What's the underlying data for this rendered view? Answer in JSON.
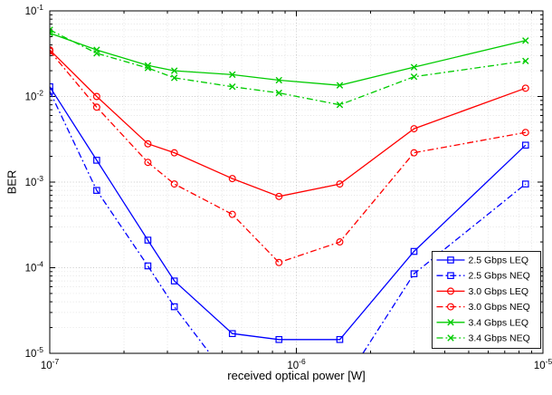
{
  "figure": {
    "title": "",
    "background": "#ffffff",
    "box_color": "#000000",
    "major_grid_color": "#b8b8b8",
    "minor_grid_color": "#dcdcdc"
  },
  "chart_data": {
    "type": "line",
    "x_scale": "log",
    "y_scale": "log",
    "xlim": [
      1e-07,
      1e-05
    ],
    "ylim": [
      1e-05,
      0.1
    ],
    "x_log_range": [
      -7,
      -5
    ],
    "y_log_range": [
      -5,
      -1
    ],
    "xlabel": "received optical power [W]",
    "ylabel": "BER",
    "x_tick_exponents": [
      -7,
      -6,
      -5
    ],
    "y_tick_exponents": [
      -5,
      -4,
      -3,
      -2,
      -1
    ],
    "grid": true,
    "minor_grid": true,
    "legend_position": "lower-right",
    "legend_labels": [
      "2.5 Gbps LEQ",
      "2.5 Gbps NEQ",
      "3.0 Gbps LEQ",
      "3.0 Gbps NEQ",
      "3.4 Gbps LEQ",
      "3.4 Gbps NEQ"
    ],
    "series": [
      {
        "name": "2.5 Gbps LEQ",
        "color": "#0000ff",
        "line": "solid",
        "marker": "square",
        "x": [
          1e-07,
          1.55e-07,
          2.5e-07,
          3.2e-07,
          5.5e-07,
          8.5e-07,
          1.5e-06,
          3e-06,
          8.5e-06
        ],
        "y": [
          0.013,
          0.0018,
          0.00021,
          7e-05,
          1.7e-05,
          1.45e-05,
          1.45e-05,
          0.000155,
          0.0027
        ]
      },
      {
        "name": "2.5 Gbps NEQ",
        "color": "#0000ff",
        "line": "dashdot",
        "marker": "square",
        "x": [
          1e-07,
          1.55e-07,
          2.5e-07,
          3.2e-07,
          5.5e-07,
          1.5e-06,
          3e-06,
          8.5e-06
        ],
        "y": [
          0.0115,
          0.0008,
          0.000105,
          3.5e-05,
          4.5e-06,
          3.8e-06,
          8.5e-05,
          0.00095
        ]
      },
      {
        "name": "3.0 Gbps LEQ",
        "color": "#ff0000",
        "line": "solid",
        "marker": "circle",
        "x": [
          1e-07,
          1.55e-07,
          2.5e-07,
          3.2e-07,
          5.5e-07,
          8.5e-07,
          1.5e-06,
          3e-06,
          8.5e-06
        ],
        "y": [
          0.035,
          0.01,
          0.0028,
          0.0022,
          0.0011,
          0.00068,
          0.00095,
          0.0042,
          0.0125
        ]
      },
      {
        "name": "3.0 Gbps NEQ",
        "color": "#ff0000",
        "line": "dashdot",
        "marker": "circle",
        "x": [
          1e-07,
          1.55e-07,
          2.5e-07,
          3.2e-07,
          5.5e-07,
          8.5e-07,
          1.5e-06,
          3e-06,
          8.5e-06
        ],
        "y": [
          0.034,
          0.0075,
          0.0017,
          0.00095,
          0.00042,
          0.000115,
          0.0002,
          0.0022,
          0.0038
        ]
      },
      {
        "name": "3.4 Gbps LEQ",
        "color": "#00cc00",
        "line": "solid",
        "marker": "x",
        "x": [
          1e-07,
          1.55e-07,
          2.5e-07,
          3.2e-07,
          5.5e-07,
          8.5e-07,
          1.5e-06,
          3e-06,
          8.5e-06
        ],
        "y": [
          0.055,
          0.035,
          0.023,
          0.02,
          0.018,
          0.0155,
          0.0135,
          0.022,
          0.045
        ]
      },
      {
        "name": "3.4 Gbps NEQ",
        "color": "#00cc00",
        "line": "dashdot",
        "marker": "x",
        "x": [
          1e-07,
          1.55e-07,
          2.5e-07,
          3.2e-07,
          5.5e-07,
          8.5e-07,
          1.5e-06,
          3e-06,
          8.5e-06
        ],
        "y": [
          0.06,
          0.032,
          0.0215,
          0.0165,
          0.013,
          0.011,
          0.008,
          0.017,
          0.026
        ]
      }
    ]
  }
}
